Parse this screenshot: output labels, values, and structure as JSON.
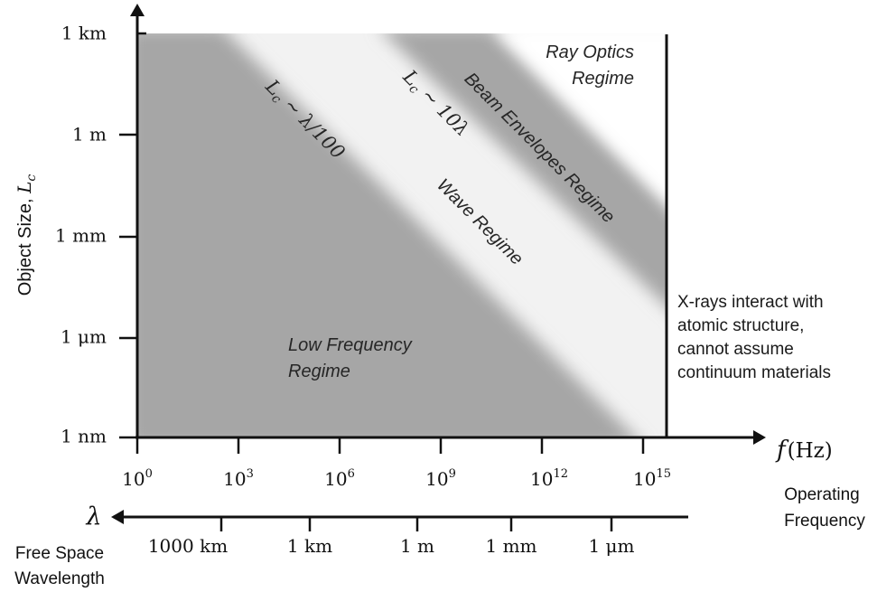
{
  "y_axis": {
    "label_prefix": "Object Size, ",
    "label_symbol": "L",
    "label_subscript": "c",
    "ticks": [
      "1 km",
      "1 m",
      "1 mm",
      "1 μm",
      "1 nm"
    ]
  },
  "x_axis": {
    "symbol": "f",
    "unit": "(Hz)",
    "ticks": [
      {
        "base": "10",
        "exp": "0"
      },
      {
        "base": "10",
        "exp": "3"
      },
      {
        "base": "10",
        "exp": "6"
      },
      {
        "base": "10",
        "exp": "9"
      },
      {
        "base": "10",
        "exp": "12"
      },
      {
        "base": "10",
        "exp": "15"
      }
    ],
    "caption_line1": "Operating",
    "caption_line2": "Frequency"
  },
  "wavelength_axis": {
    "symbol": "λ",
    "ticks": [
      "1000 km",
      "1 km",
      "1 m",
      "1 mm",
      "1 μm"
    ],
    "caption_line1": "Free Space",
    "caption_line2": "Wavelength"
  },
  "regions": {
    "ray_optics_line1": "Ray Optics",
    "ray_optics_line2": "Regime",
    "beam_envelopes": "Beam Envelopes Regime",
    "wave": "Wave Regime",
    "low_freq_line1": "Low Frequency",
    "low_freq_line2": "Regime"
  },
  "boundaries": {
    "left_symbol": "L",
    "left_sub": "c",
    "left_rest": " ~ λ/100",
    "right_symbol": "L",
    "right_sub": "c",
    "right_rest": " ~ 10λ"
  },
  "xray_note": {
    "line1": "X-rays interact with",
    "line2": "atomic structure,",
    "line3": "cannot assume",
    "line4": "continuum materials"
  },
  "colors": {
    "low_freq_fill": "#a6a6a6",
    "beam_fill": "#a6a6a6",
    "wave_fill": "#f2f2f2",
    "axis": "#111111"
  }
}
